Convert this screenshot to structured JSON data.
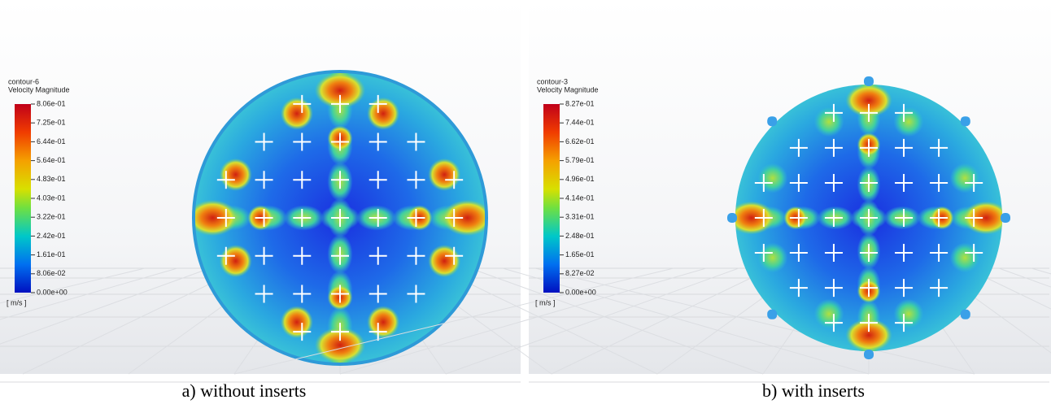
{
  "panels": [
    {
      "legend_name": "contour-6",
      "quantity": "Velocity Magnitude",
      "ticks": [
        "8.06e-01",
        "7.25e-01",
        "6.44e-01",
        "5.64e-01",
        "4.83e-01",
        "4.03e-01",
        "3.22e-01",
        "2.42e-01",
        "1.61e-01",
        "8.06e-02",
        "0.00e+00"
      ],
      "unit": "[ m/s ]",
      "caption": "a) without inserts"
    },
    {
      "legend_name": "contour-3",
      "quantity": "Velocity Magnitude",
      "ticks": [
        "8.27e-01",
        "7.44e-01",
        "6.62e-01",
        "5.79e-01",
        "4.96e-01",
        "4.14e-01",
        "3.31e-01",
        "2.48e-01",
        "1.65e-01",
        "8.27e-02",
        "0.00e+00"
      ],
      "unit": "[ m/s ]",
      "caption": "b) with inserts"
    }
  ]
}
